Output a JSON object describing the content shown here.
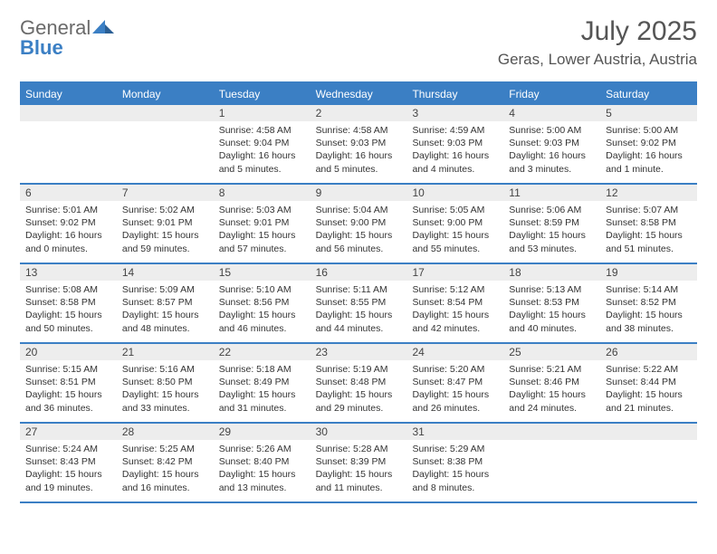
{
  "brand": {
    "general": "General",
    "blue": "Blue"
  },
  "title": "July 2025",
  "location": "Geras, Lower Austria, Austria",
  "colors": {
    "accent": "#3b7fc4",
    "header_text": "#ffffff",
    "daynum_bg": "#ededed",
    "body_text": "#333333",
    "title_text": "#555555"
  },
  "day_headers": [
    "Sunday",
    "Monday",
    "Tuesday",
    "Wednesday",
    "Thursday",
    "Friday",
    "Saturday"
  ],
  "weeks": [
    [
      null,
      null,
      {
        "n": "1",
        "sr": "Sunrise: 4:58 AM",
        "ss": "Sunset: 9:04 PM",
        "d1": "Daylight: 16 hours",
        "d2": "and 5 minutes."
      },
      {
        "n": "2",
        "sr": "Sunrise: 4:58 AM",
        "ss": "Sunset: 9:03 PM",
        "d1": "Daylight: 16 hours",
        "d2": "and 5 minutes."
      },
      {
        "n": "3",
        "sr": "Sunrise: 4:59 AM",
        "ss": "Sunset: 9:03 PM",
        "d1": "Daylight: 16 hours",
        "d2": "and 4 minutes."
      },
      {
        "n": "4",
        "sr": "Sunrise: 5:00 AM",
        "ss": "Sunset: 9:03 PM",
        "d1": "Daylight: 16 hours",
        "d2": "and 3 minutes."
      },
      {
        "n": "5",
        "sr": "Sunrise: 5:00 AM",
        "ss": "Sunset: 9:02 PM",
        "d1": "Daylight: 16 hours",
        "d2": "and 1 minute."
      }
    ],
    [
      {
        "n": "6",
        "sr": "Sunrise: 5:01 AM",
        "ss": "Sunset: 9:02 PM",
        "d1": "Daylight: 16 hours",
        "d2": "and 0 minutes."
      },
      {
        "n": "7",
        "sr": "Sunrise: 5:02 AM",
        "ss": "Sunset: 9:01 PM",
        "d1": "Daylight: 15 hours",
        "d2": "and 59 minutes."
      },
      {
        "n": "8",
        "sr": "Sunrise: 5:03 AM",
        "ss": "Sunset: 9:01 PM",
        "d1": "Daylight: 15 hours",
        "d2": "and 57 minutes."
      },
      {
        "n": "9",
        "sr": "Sunrise: 5:04 AM",
        "ss": "Sunset: 9:00 PM",
        "d1": "Daylight: 15 hours",
        "d2": "and 56 minutes."
      },
      {
        "n": "10",
        "sr": "Sunrise: 5:05 AM",
        "ss": "Sunset: 9:00 PM",
        "d1": "Daylight: 15 hours",
        "d2": "and 55 minutes."
      },
      {
        "n": "11",
        "sr": "Sunrise: 5:06 AM",
        "ss": "Sunset: 8:59 PM",
        "d1": "Daylight: 15 hours",
        "d2": "and 53 minutes."
      },
      {
        "n": "12",
        "sr": "Sunrise: 5:07 AM",
        "ss": "Sunset: 8:58 PM",
        "d1": "Daylight: 15 hours",
        "d2": "and 51 minutes."
      }
    ],
    [
      {
        "n": "13",
        "sr": "Sunrise: 5:08 AM",
        "ss": "Sunset: 8:58 PM",
        "d1": "Daylight: 15 hours",
        "d2": "and 50 minutes."
      },
      {
        "n": "14",
        "sr": "Sunrise: 5:09 AM",
        "ss": "Sunset: 8:57 PM",
        "d1": "Daylight: 15 hours",
        "d2": "and 48 minutes."
      },
      {
        "n": "15",
        "sr": "Sunrise: 5:10 AM",
        "ss": "Sunset: 8:56 PM",
        "d1": "Daylight: 15 hours",
        "d2": "and 46 minutes."
      },
      {
        "n": "16",
        "sr": "Sunrise: 5:11 AM",
        "ss": "Sunset: 8:55 PM",
        "d1": "Daylight: 15 hours",
        "d2": "and 44 minutes."
      },
      {
        "n": "17",
        "sr": "Sunrise: 5:12 AM",
        "ss": "Sunset: 8:54 PM",
        "d1": "Daylight: 15 hours",
        "d2": "and 42 minutes."
      },
      {
        "n": "18",
        "sr": "Sunrise: 5:13 AM",
        "ss": "Sunset: 8:53 PM",
        "d1": "Daylight: 15 hours",
        "d2": "and 40 minutes."
      },
      {
        "n": "19",
        "sr": "Sunrise: 5:14 AM",
        "ss": "Sunset: 8:52 PM",
        "d1": "Daylight: 15 hours",
        "d2": "and 38 minutes."
      }
    ],
    [
      {
        "n": "20",
        "sr": "Sunrise: 5:15 AM",
        "ss": "Sunset: 8:51 PM",
        "d1": "Daylight: 15 hours",
        "d2": "and 36 minutes."
      },
      {
        "n": "21",
        "sr": "Sunrise: 5:16 AM",
        "ss": "Sunset: 8:50 PM",
        "d1": "Daylight: 15 hours",
        "d2": "and 33 minutes."
      },
      {
        "n": "22",
        "sr": "Sunrise: 5:18 AM",
        "ss": "Sunset: 8:49 PM",
        "d1": "Daylight: 15 hours",
        "d2": "and 31 minutes."
      },
      {
        "n": "23",
        "sr": "Sunrise: 5:19 AM",
        "ss": "Sunset: 8:48 PM",
        "d1": "Daylight: 15 hours",
        "d2": "and 29 minutes."
      },
      {
        "n": "24",
        "sr": "Sunrise: 5:20 AM",
        "ss": "Sunset: 8:47 PM",
        "d1": "Daylight: 15 hours",
        "d2": "and 26 minutes."
      },
      {
        "n": "25",
        "sr": "Sunrise: 5:21 AM",
        "ss": "Sunset: 8:46 PM",
        "d1": "Daylight: 15 hours",
        "d2": "and 24 minutes."
      },
      {
        "n": "26",
        "sr": "Sunrise: 5:22 AM",
        "ss": "Sunset: 8:44 PM",
        "d1": "Daylight: 15 hours",
        "d2": "and 21 minutes."
      }
    ],
    [
      {
        "n": "27",
        "sr": "Sunrise: 5:24 AM",
        "ss": "Sunset: 8:43 PM",
        "d1": "Daylight: 15 hours",
        "d2": "and 19 minutes."
      },
      {
        "n": "28",
        "sr": "Sunrise: 5:25 AM",
        "ss": "Sunset: 8:42 PM",
        "d1": "Daylight: 15 hours",
        "d2": "and 16 minutes."
      },
      {
        "n": "29",
        "sr": "Sunrise: 5:26 AM",
        "ss": "Sunset: 8:40 PM",
        "d1": "Daylight: 15 hours",
        "d2": "and 13 minutes."
      },
      {
        "n": "30",
        "sr": "Sunrise: 5:28 AM",
        "ss": "Sunset: 8:39 PM",
        "d1": "Daylight: 15 hours",
        "d2": "and 11 minutes."
      },
      {
        "n": "31",
        "sr": "Sunrise: 5:29 AM",
        "ss": "Sunset: 8:38 PM",
        "d1": "Daylight: 15 hours",
        "d2": "and 8 minutes."
      },
      null,
      null
    ]
  ]
}
